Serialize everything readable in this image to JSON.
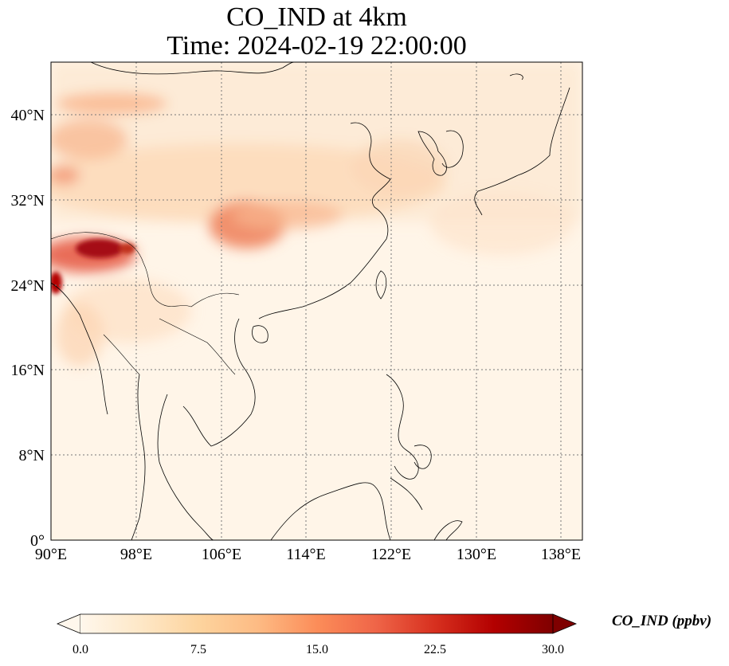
{
  "title": {
    "line1": "CO_IND at 4km",
    "line2": "Time: 2024-02-19 22:00:00"
  },
  "axes": {
    "x_ticks": [
      "90°E",
      "98°E",
      "106°E",
      "114°E",
      "122°E",
      "130°E",
      "138°E"
    ],
    "y_ticks": [
      "0°",
      "8°N",
      "16°N",
      "24°N",
      "32°N",
      "40°N"
    ],
    "lon_range": [
      90,
      140
    ],
    "lat_range": [
      0,
      45
    ],
    "grid": true
  },
  "colorbar": {
    "label": "CO_IND (ppbv)",
    "ticks": [
      "0.0",
      "7.5",
      "15.0",
      "22.5",
      "30.0"
    ],
    "range": [
      0,
      30
    ],
    "extend": "both",
    "colormap": "OrRd",
    "colors": [
      "#fff7ec",
      "#fee8c8",
      "#fdd49e",
      "#fdbb84",
      "#fc8d59",
      "#ef6548",
      "#d7301f",
      "#b30000",
      "#7f0000"
    ]
  },
  "colors": {
    "background": "#fff5e8",
    "coastline": "#000000",
    "grid": "#777777"
  }
}
